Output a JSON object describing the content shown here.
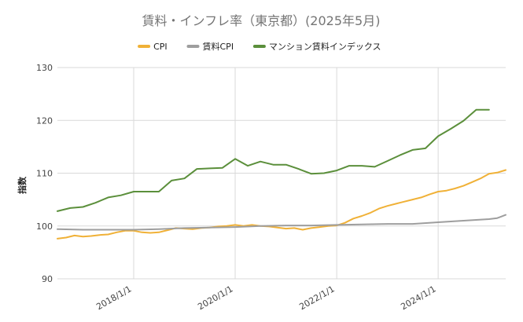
{
  "chart_data": {
    "type": "line",
    "title": "賃料・インフレ率（東京都）(2025年5月)",
    "ylabel": "指数",
    "ylim": [
      90,
      130
    ],
    "yticks": [
      "90",
      "100",
      "110",
      "120",
      "130"
    ],
    "xlim": [
      "2016/7/1",
      "2025/5/1"
    ],
    "xticks": [
      {
        "date": "2018/1/1",
        "label": "2018/1/1"
      },
      {
        "date": "2020/1/1",
        "label": "2020/1/1"
      },
      {
        "date": "2022/1/1",
        "label": "2022/1/1"
      },
      {
        "date": "2024/1/1",
        "label": "2024/1/1"
      }
    ],
    "legend_position": "top",
    "grid": true,
    "series": [
      {
        "name": "CPI",
        "color": "#F0B137",
        "points": [
          [
            "2016/7/1",
            97.6
          ],
          [
            "2016/9/1",
            97.8
          ],
          [
            "2016/11/1",
            98.2
          ],
          [
            "2017/1/1",
            98.0
          ],
          [
            "2017/3/1",
            98.1
          ],
          [
            "2017/5/1",
            98.3
          ],
          [
            "2017/7/1",
            98.4
          ],
          [
            "2017/9/1",
            98.8
          ],
          [
            "2017/11/1",
            99.1
          ],
          [
            "2018/1/1",
            99.1
          ],
          [
            "2018/3/1",
            98.8
          ],
          [
            "2018/5/1",
            98.7
          ],
          [
            "2018/7/1",
            98.8
          ],
          [
            "2018/9/1",
            99.2
          ],
          [
            "2018/11/1",
            99.6
          ],
          [
            "2019/1/1",
            99.5
          ],
          [
            "2019/3/1",
            99.4
          ],
          [
            "2019/5/1",
            99.6
          ],
          [
            "2019/7/1",
            99.7
          ],
          [
            "2019/9/1",
            99.9
          ],
          [
            "2019/11/1",
            100.0
          ],
          [
            "2020/1/1",
            100.2
          ],
          [
            "2020/3/1",
            100.0
          ],
          [
            "2020/5/1",
            100.2
          ],
          [
            "2020/7/1",
            100.0
          ],
          [
            "2020/9/1",
            99.9
          ],
          [
            "2020/11/1",
            99.7
          ],
          [
            "2021/1/1",
            99.5
          ],
          [
            "2021/3/1",
            99.6
          ],
          [
            "2021/5/1",
            99.3
          ],
          [
            "2021/7/1",
            99.6
          ],
          [
            "2021/9/1",
            99.8
          ],
          [
            "2021/11/1",
            100.0
          ],
          [
            "2022/1/1",
            100.1
          ],
          [
            "2022/3/1",
            100.6
          ],
          [
            "2022/5/1",
            101.4
          ],
          [
            "2022/7/1",
            101.9
          ],
          [
            "2022/9/1",
            102.5
          ],
          [
            "2022/11/1",
            103.3
          ],
          [
            "2023/1/1",
            103.8
          ],
          [
            "2023/3/1",
            104.2
          ],
          [
            "2023/5/1",
            104.6
          ],
          [
            "2023/7/1",
            105.0
          ],
          [
            "2023/9/1",
            105.4
          ],
          [
            "2023/11/1",
            106.0
          ],
          [
            "2024/1/1",
            106.5
          ],
          [
            "2024/3/1",
            106.7
          ],
          [
            "2024/5/1",
            107.1
          ],
          [
            "2024/7/1",
            107.6
          ],
          [
            "2024/9/1",
            108.3
          ],
          [
            "2024/11/1",
            109.0
          ],
          [
            "2025/1/1",
            109.9
          ],
          [
            "2025/3/1",
            110.1
          ],
          [
            "2025/5/1",
            110.6
          ]
        ]
      },
      {
        "name": "賃料CPI",
        "color": "#9E9E9E",
        "points": [
          [
            "2016/7/1",
            99.4
          ],
          [
            "2017/1/1",
            99.3
          ],
          [
            "2017/7/1",
            99.3
          ],
          [
            "2018/1/1",
            99.3
          ],
          [
            "2018/7/1",
            99.4
          ],
          [
            "2019/1/1",
            99.6
          ],
          [
            "2019/7/1",
            99.7
          ],
          [
            "2020/1/1",
            99.8
          ],
          [
            "2020/7/1",
            100.0
          ],
          [
            "2021/1/1",
            100.1
          ],
          [
            "2021/7/1",
            100.1
          ],
          [
            "2022/1/1",
            100.2
          ],
          [
            "2022/7/1",
            100.3
          ],
          [
            "2023/1/1",
            100.4
          ],
          [
            "2023/7/1",
            100.4
          ],
          [
            "2024/1/1",
            100.7
          ],
          [
            "2024/7/1",
            101.0
          ],
          [
            "2025/1/1",
            101.3
          ],
          [
            "2025/3/1",
            101.5
          ],
          [
            "2025/5/1",
            102.1
          ]
        ]
      },
      {
        "name": "マンション賃料インデックス",
        "color": "#5B8F3B",
        "points": [
          [
            "2016/7/1",
            102.8
          ],
          [
            "2016/10/1",
            103.4
          ],
          [
            "2017/1/1",
            103.6
          ],
          [
            "2017/4/1",
            104.4
          ],
          [
            "2017/7/1",
            105.4
          ],
          [
            "2017/10/1",
            105.8
          ],
          [
            "2018/1/1",
            106.5
          ],
          [
            "2018/4/1",
            106.5
          ],
          [
            "2018/7/1",
            106.5
          ],
          [
            "2018/10/1",
            108.6
          ],
          [
            "2019/1/1",
            109.0
          ],
          [
            "2019/4/1",
            110.8
          ],
          [
            "2019/7/1",
            110.9
          ],
          [
            "2019/10/1",
            111.0
          ],
          [
            "2020/1/1",
            112.7
          ],
          [
            "2020/4/1",
            111.4
          ],
          [
            "2020/7/1",
            112.2
          ],
          [
            "2020/10/1",
            111.6
          ],
          [
            "2021/1/1",
            111.6
          ],
          [
            "2021/4/1",
            110.8
          ],
          [
            "2021/7/1",
            109.9
          ],
          [
            "2021/10/1",
            110.0
          ],
          [
            "2022/1/1",
            110.5
          ],
          [
            "2022/4/1",
            111.4
          ],
          [
            "2022/7/1",
            111.4
          ],
          [
            "2022/10/1",
            111.2
          ],
          [
            "2023/1/1",
            112.3
          ],
          [
            "2023/4/1",
            113.4
          ],
          [
            "2023/7/1",
            114.4
          ],
          [
            "2023/10/1",
            114.7
          ],
          [
            "2024/1/1",
            117.0
          ],
          [
            "2024/4/1",
            118.4
          ],
          [
            "2024/7/1",
            119.9
          ],
          [
            "2024/10/1",
            122.0
          ],
          [
            "2025/1/1",
            122.0
          ]
        ]
      }
    ]
  }
}
